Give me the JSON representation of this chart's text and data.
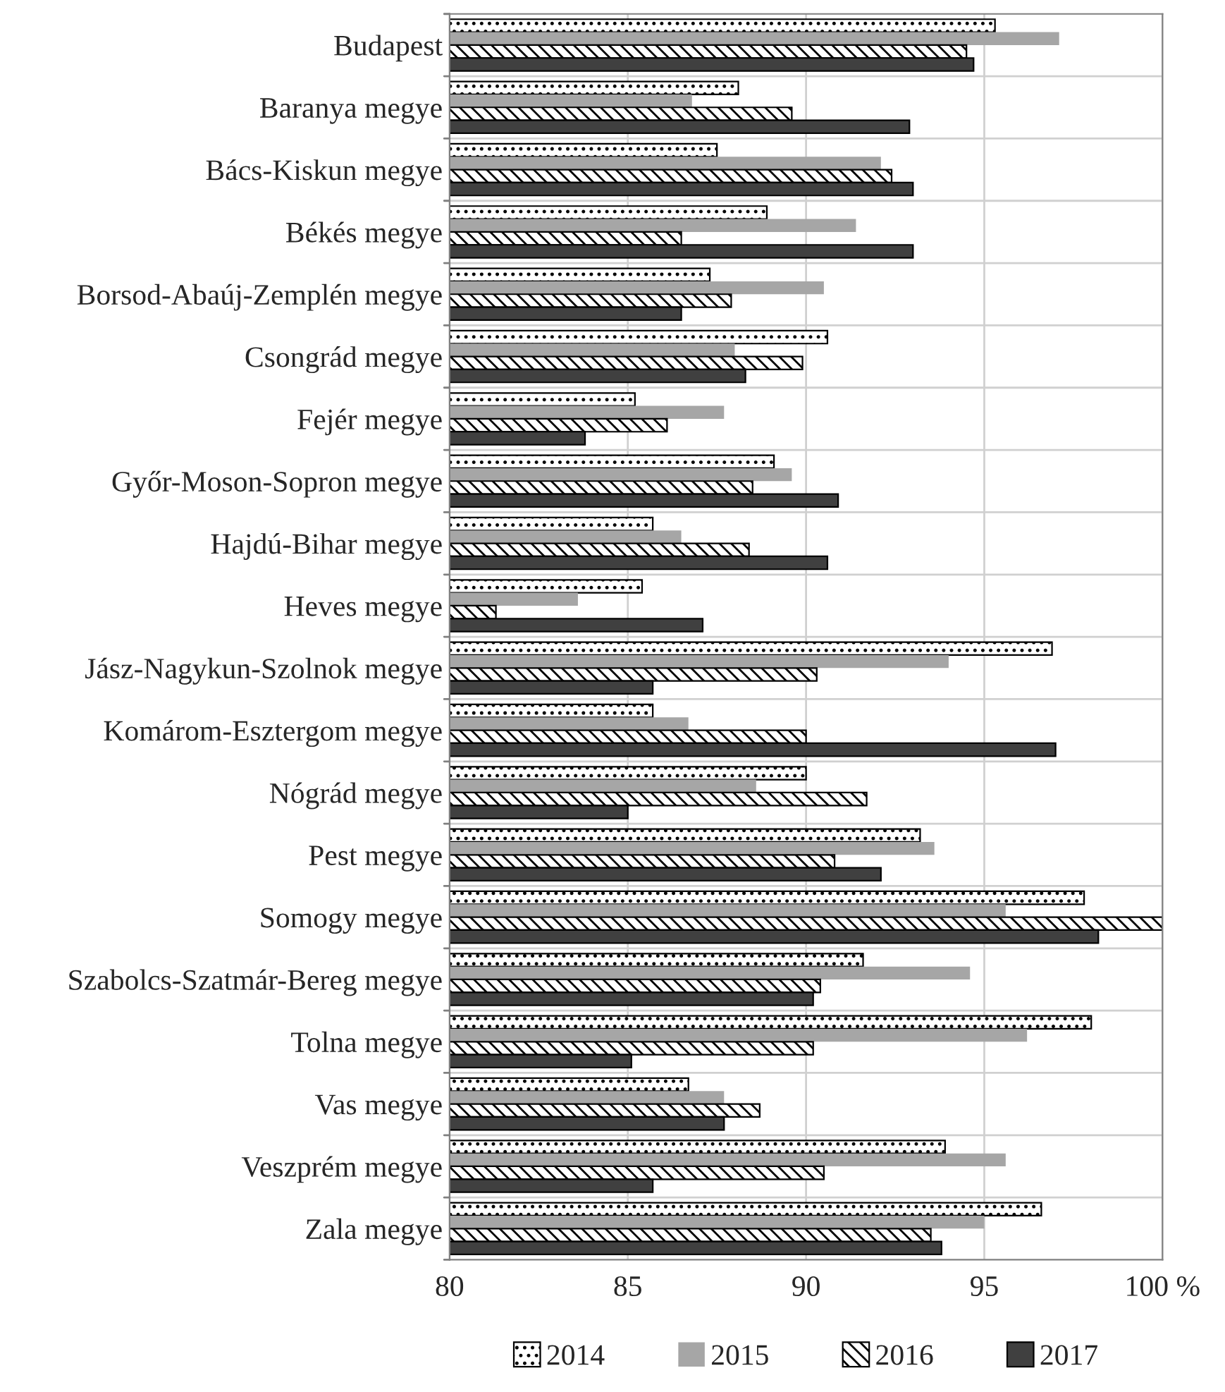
{
  "chart_data": {
    "type": "bar",
    "orientation": "horizontal",
    "categories": [
      "Budapest",
      "Baranya megye",
      "Bács-Kiskun megye",
      "Békés megye",
      "Borsod-Abaúj-Zemplén megye",
      "Csongrád megye",
      "Fejér megye",
      "Győr-Moson-Sopron megye",
      "Hajdú-Bihar megye",
      "Heves megye",
      "Jász-Nagykun-Szolnok megye",
      "Komárom-Esztergom megye",
      "Nógrád megye",
      "Pest megye",
      "Somogy megye",
      "Szabolcs-Szatmár-Bereg megye",
      "Tolna megye",
      "Vas megye",
      "Veszprém megye",
      "Zala megye"
    ],
    "series": [
      {
        "name": "2014",
        "color": "#000000",
        "values": [
          95.3,
          88.1,
          87.5,
          88.9,
          87.3,
          90.6,
          85.2,
          89.1,
          85.7,
          85.4,
          96.9,
          85.7,
          90.0,
          93.2,
          97.8,
          91.6,
          98.0,
          86.7,
          93.9,
          96.6
        ]
      },
      {
        "name": "2015",
        "color": "#a6a6a6",
        "values": [
          97.1,
          86.8,
          92.1,
          91.4,
          90.5,
          88.0,
          87.7,
          89.6,
          86.5,
          83.6,
          94.0,
          86.7,
          88.6,
          93.6,
          95.6,
          94.6,
          96.2,
          87.7,
          95.6,
          95.0
        ]
      },
      {
        "name": "2016",
        "color": "#000000",
        "values": [
          94.5,
          89.6,
          92.4,
          86.5,
          87.9,
          89.9,
          86.1,
          88.5,
          88.4,
          81.3,
          90.3,
          90.0,
          91.7,
          90.8,
          100.0,
          90.4,
          90.2,
          88.7,
          90.5,
          93.5
        ]
      },
      {
        "name": "2017",
        "color": "#404040",
        "values": [
          94.7,
          92.9,
          93.0,
          93.0,
          86.5,
          88.3,
          83.8,
          90.9,
          90.6,
          87.1,
          85.7,
          97.0,
          85.0,
          92.1,
          98.2,
          90.2,
          85.1,
          87.7,
          85.7,
          93.8
        ]
      }
    ],
    "xlim": [
      80,
      100
    ],
    "xticks": [
      80,
      85,
      90,
      95,
      {
        "value": 100,
        "label": "100 %"
      }
    ],
    "grid": true,
    "legend": "bottom"
  }
}
